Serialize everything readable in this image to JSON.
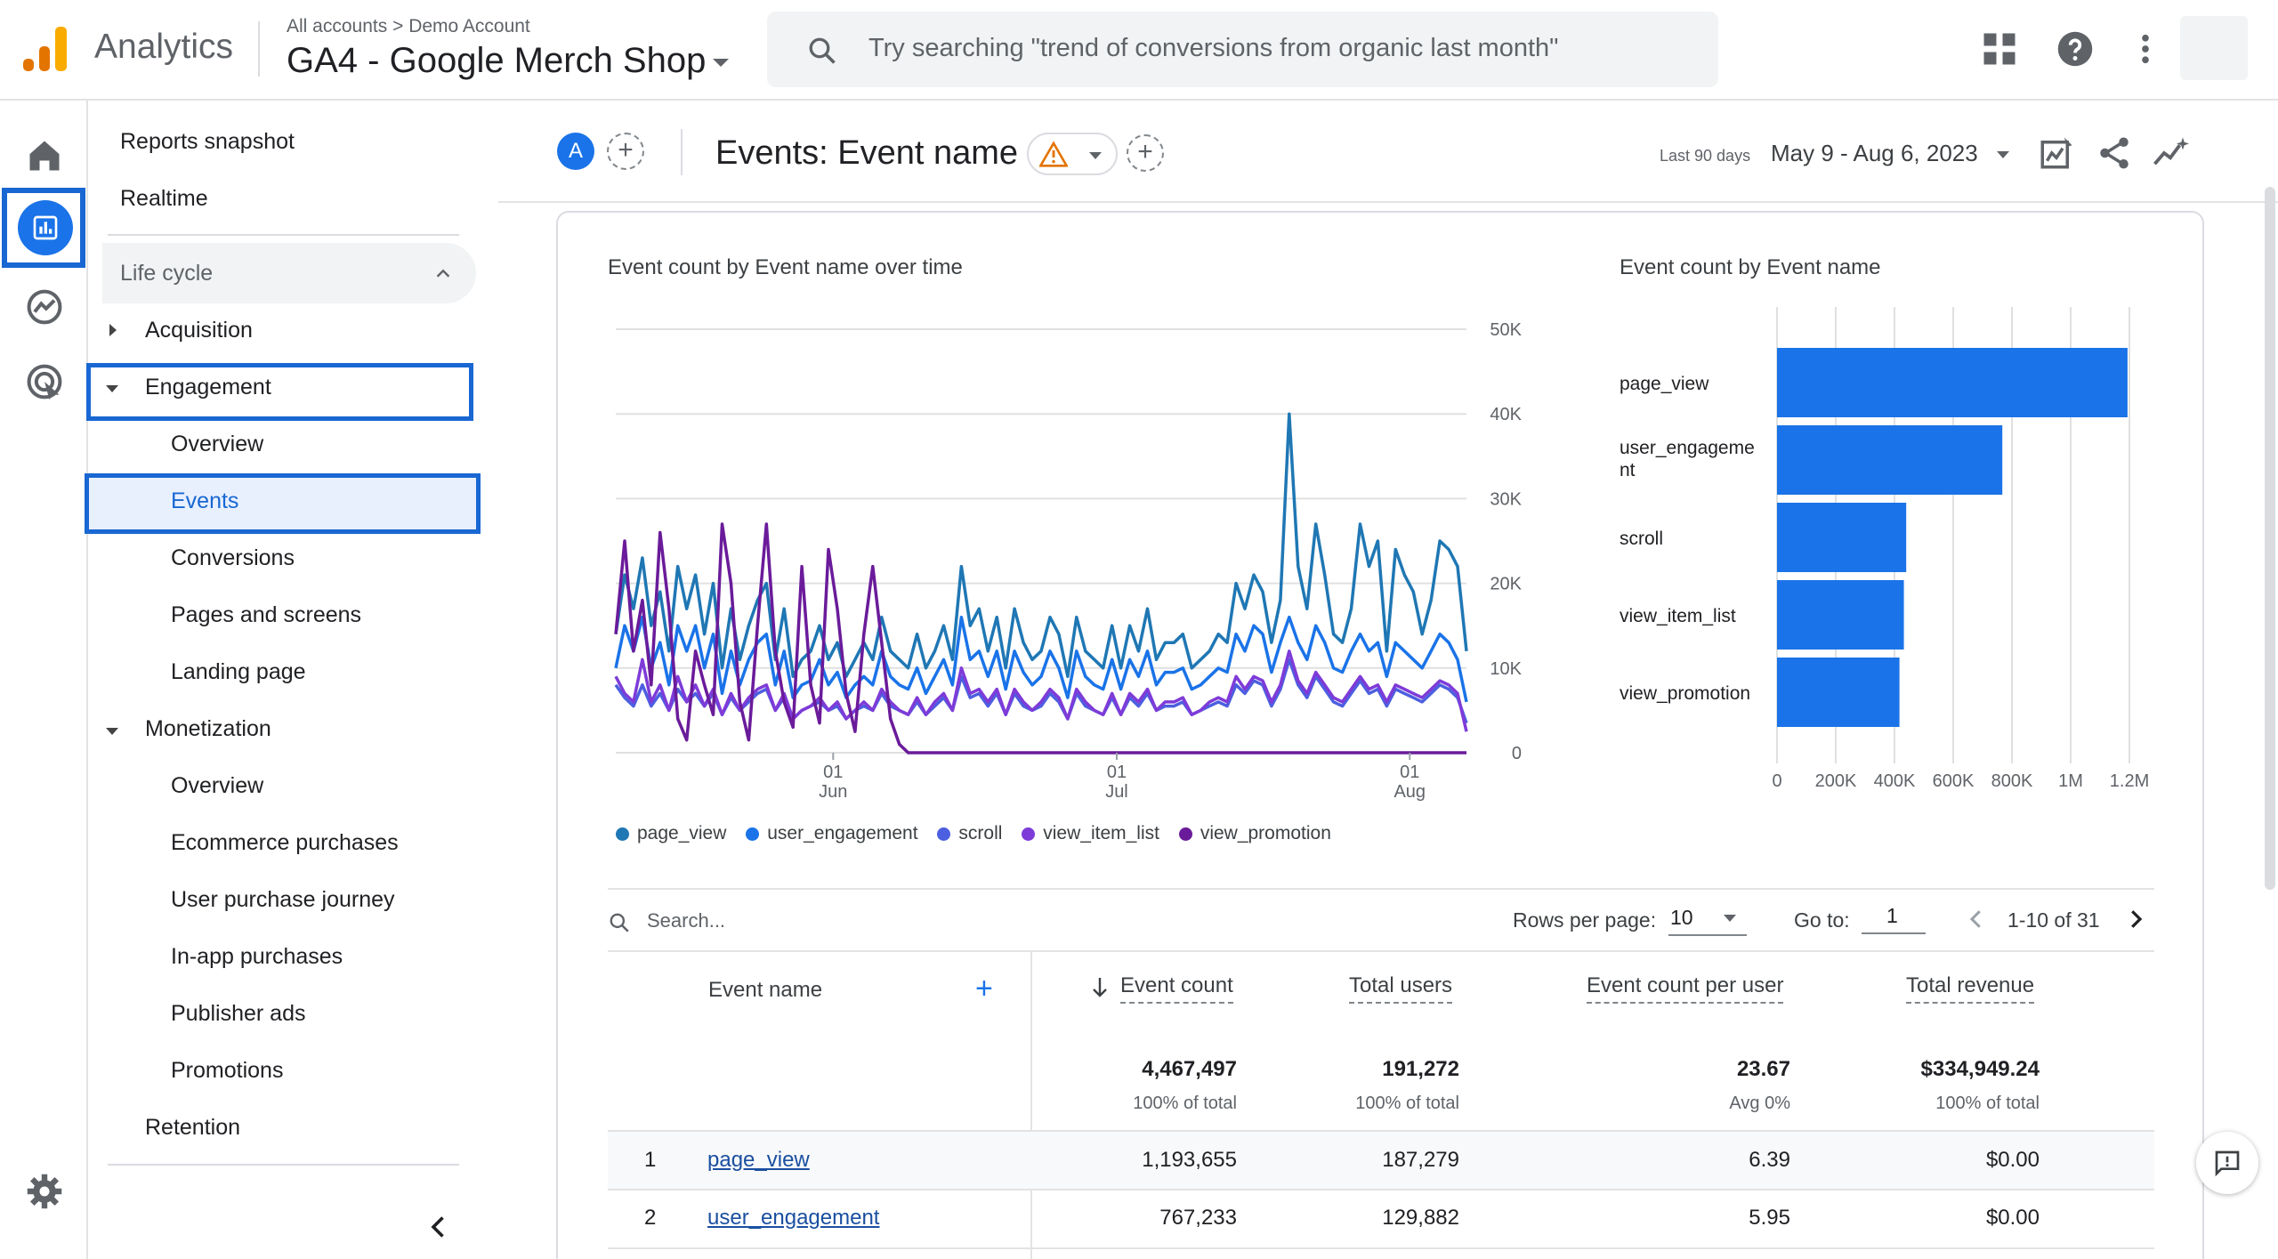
{
  "header": {
    "app_name": "Analytics",
    "breadcrumb_all": "All accounts",
    "breadcrumb_sep": ">",
    "breadcrumb_account": "Demo Account",
    "property": "GA4 - Google Merch Shop",
    "search_placeholder": "Try searching \"trend of conversions from organic last month\""
  },
  "nav": {
    "reports_snapshot": "Reports snapshot",
    "realtime": "Realtime",
    "lifecycle": "Life cycle",
    "acquisition": "Acquisition",
    "engagement": "Engagement",
    "engagement_items": [
      "Overview",
      "Events",
      "Conversions",
      "Pages and screens",
      "Landing page"
    ],
    "monetization": "Monetization",
    "monetization_items": [
      "Overview",
      "Ecommerce purchases",
      "User purchase journey",
      "In-app purchases",
      "Publisher ads",
      "Promotions"
    ],
    "retention": "Retention"
  },
  "toolbar": {
    "comparison_chip": "A",
    "title": "Events: Event name",
    "date_label": "Last 90 days",
    "date_range": "May 9 - Aug 6, 2023"
  },
  "colors": {
    "page_view": "#1f77b4",
    "user_engagement": "#1a73e8",
    "scroll": "#4c5fe0",
    "view_item_list": "#7e3bd8",
    "view_promotion": "#6a1b9a",
    "bar": "#1a73e8",
    "accent": "#1967d2"
  },
  "chart_data": [
    {
      "type": "line",
      "title": "Event count by Event name over time",
      "x_ticks": [
        {
          "day": "01",
          "month": "Jun"
        },
        {
          "day": "01",
          "month": "Jul"
        },
        {
          "day": "01",
          "month": "Aug"
        }
      ],
      "y_ticks": [
        "50K",
        "40K",
        "30K",
        "20K",
        "10K",
        "0"
      ],
      "ylim": [
        0,
        50000
      ],
      "series": [
        {
          "name": "page_view",
          "values": [
            14000,
            21000,
            17000,
            23000,
            15000,
            19000,
            12000,
            22000,
            17000,
            21000,
            14000,
            20000,
            10000,
            17000,
            11000,
            15000,
            18000,
            20000,
            11000,
            17000,
            9000,
            11000,
            12000,
            15000,
            11000,
            13000,
            9000,
            11000,
            13000,
            11000,
            16000,
            12000,
            11000,
            10000,
            14000,
            10000,
            12000,
            15000,
            11000,
            22000,
            15000,
            17000,
            12000,
            16000,
            10000,
            17000,
            13000,
            11000,
            12000,
            16000,
            14000,
            9000,
            16000,
            12000,
            11000,
            10000,
            15000,
            10000,
            15000,
            12000,
            17000,
            11000,
            13000,
            13000,
            14000,
            10000,
            11000,
            12000,
            14000,
            13000,
            20000,
            17000,
            21000,
            19000,
            13000,
            18000,
            40000,
            22000,
            17000,
            27000,
            21000,
            14000,
            13000,
            17000,
            27000,
            22000,
            25000,
            12000,
            24000,
            21000,
            19000,
            14000,
            18000,
            25000,
            24000,
            22000,
            12000
          ]
        },
        {
          "name": "user_engagement",
          "values": [
            10000,
            15000,
            12000,
            16000,
            10000,
            13000,
            8000,
            15000,
            12000,
            15000,
            10000,
            14000,
            7000,
            12000,
            8000,
            11000,
            13000,
            14000,
            8000,
            12000,
            6500,
            8000,
            8500,
            11000,
            8000,
            9500,
            6500,
            8000,
            9000,
            8000,
            12000,
            9000,
            8000,
            7500,
            10000,
            7000,
            9000,
            11000,
            8000,
            16000,
            11000,
            12000,
            9000,
            12000,
            7500,
            12000,
            9500,
            8000,
            9000,
            12000,
            10000,
            6500,
            12000,
            9000,
            8000,
            7500,
            11000,
            7500,
            11000,
            9000,
            12000,
            8000,
            9500,
            9500,
            10000,
            7500,
            8000,
            9000,
            10000,
            9500,
            14000,
            12000,
            15000,
            14000,
            9500,
            13000,
            16000,
            13000,
            11000,
            15000,
            13000,
            10000,
            9500,
            12000,
            14000,
            12000,
            13000,
            9000,
            13000,
            12000,
            11000,
            10000,
            12000,
            14000,
            13000,
            11000,
            6000
          ]
        },
        {
          "name": "scroll",
          "values": [
            8000,
            6500,
            5500,
            8000,
            5500,
            7000,
            5000,
            7500,
            6000,
            7000,
            5500,
            7000,
            4500,
            6500,
            5000,
            6000,
            7000,
            7500,
            5000,
            6500,
            4000,
            5000,
            5500,
            6000,
            5000,
            5500,
            4000,
            5000,
            5500,
            5000,
            7000,
            5500,
            5000,
            4500,
            6000,
            4500,
            5500,
            6500,
            5000,
            9000,
            6500,
            7000,
            5500,
            7000,
            4500,
            7000,
            5500,
            5000,
            5500,
            7000,
            6000,
            4000,
            7000,
            5500,
            5000,
            4500,
            6500,
            4500,
            6500,
            5500,
            7000,
            5000,
            5500,
            5500,
            6000,
            4500,
            5000,
            5500,
            6000,
            5500,
            8000,
            7000,
            8500,
            8000,
            5500,
            7500,
            11000,
            8000,
            6500,
            9000,
            7500,
            6000,
            5500,
            7000,
            8500,
            7000,
            7500,
            5500,
            7500,
            7000,
            6500,
            6000,
            7000,
            8000,
            7500,
            6500,
            3500
          ]
        },
        {
          "name": "view_item_list",
          "values": [
            9000,
            7000,
            6000,
            11000,
            6000,
            8000,
            5000,
            9000,
            6000,
            8000,
            5500,
            7500,
            4500,
            7000,
            5000,
            6500,
            7500,
            8000,
            5000,
            7000,
            4000,
            5000,
            5500,
            6500,
            5000,
            6000,
            4000,
            5000,
            6000,
            5000,
            7500,
            6000,
            5000,
            4500,
            6500,
            4500,
            6000,
            7000,
            5000,
            10000,
            7000,
            7500,
            6000,
            7500,
            4500,
            7500,
            6000,
            5000,
            6000,
            7500,
            6500,
            4000,
            7500,
            6000,
            5000,
            4500,
            7000,
            4500,
            7000,
            6000,
            7500,
            5000,
            6000,
            6000,
            6500,
            4500,
            5000,
            6000,
            6500,
            6000,
            9000,
            7500,
            9000,
            8500,
            6000,
            8000,
            12000,
            8500,
            7000,
            9500,
            8000,
            6500,
            6000,
            7500,
            9000,
            7500,
            8000,
            6000,
            8000,
            7500,
            7000,
            6500,
            7500,
            8500,
            8000,
            7000,
            2500
          ]
        },
        {
          "name": "view_promotion",
          "values": [
            14000,
            25000,
            12000,
            18000,
            8000,
            26000,
            17000,
            4000,
            1500,
            12000,
            8000,
            4500,
            27000,
            20000,
            6000,
            1500,
            15000,
            27000,
            12000,
            6000,
            3000,
            22000,
            8000,
            3500,
            24000,
            17000,
            7000,
            2500,
            14000,
            22000,
            13000,
            4000,
            1000,
            0,
            0,
            0,
            0,
            0,
            0,
            0,
            0,
            0,
            0,
            0,
            0,
            0,
            0,
            0,
            0,
            0,
            0,
            0,
            0,
            0,
            0,
            0,
            0,
            0,
            0,
            0,
            0,
            0,
            0,
            0,
            0,
            0,
            0,
            0,
            0,
            0,
            0,
            0,
            0,
            0,
            0,
            0,
            0,
            0,
            0,
            0,
            0,
            0,
            0,
            0,
            0,
            0,
            0,
            0,
            0,
            0,
            0,
            0,
            0,
            0,
            0,
            0,
            0
          ]
        }
      ]
    },
    {
      "type": "bar",
      "orientation": "horizontal",
      "title": "Event count by Event name",
      "categories": [
        "page_view",
        "user_engageme nt",
        "scroll",
        "view_item_list",
        "view_promotion"
      ],
      "values": [
        1193655,
        767233,
        440000,
        432000,
        417000
      ],
      "x_ticks": [
        "0",
        "200K",
        "400K",
        "600K",
        "800K",
        "1M",
        "1.2M"
      ],
      "xlim": [
        0,
        1200000
      ]
    }
  ],
  "table": {
    "search_placeholder": "Search...",
    "rows_per_page_label": "Rows per page:",
    "rows_per_page_value": "10",
    "goto_label": "Go to:",
    "goto_value": "1",
    "pagination": "1-10 of 31",
    "columns": [
      "Event name",
      "Event count",
      "Total users",
      "Event count per user",
      "Total revenue"
    ],
    "totals": {
      "event_count": "4,467,497",
      "event_count_sub": "100% of total",
      "total_users": "191,272",
      "total_users_sub": "100% of total",
      "per_user": "23.67",
      "per_user_sub": "Avg 0%",
      "revenue": "$334,949.24",
      "revenue_sub": "100% of total"
    },
    "rows": [
      {
        "n": "1",
        "name": "page_view",
        "count": "1,193,655",
        "users": "187,279",
        "per_user": "6.39",
        "revenue": "$0.00"
      },
      {
        "n": "2",
        "name": "user_engagement",
        "count": "767,233",
        "users": "129,882",
        "per_user": "5.95",
        "revenue": "$0.00"
      }
    ]
  }
}
